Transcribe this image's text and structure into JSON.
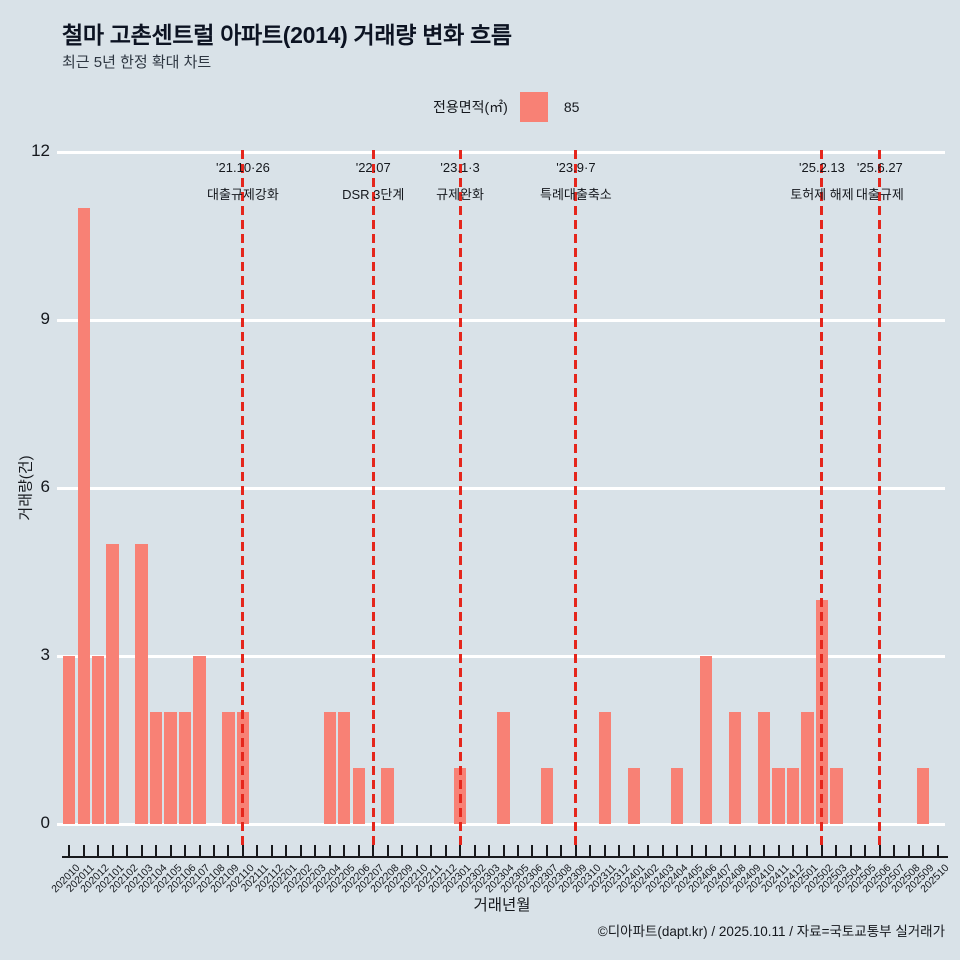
{
  "colors": {
    "background": "#d9e2e8",
    "bar": "#f88175",
    "event_line": "#e5261c",
    "gridline": "#ffffff",
    "text": "#15181d"
  },
  "legend": {
    "label": "전용면적(㎡)",
    "value": "85"
  },
  "footer": {
    "credit": "©디아파트(dapt.kr) / 2025.10.11 / 자료=국토교통부 실거래가"
  },
  "chart_data": {
    "type": "bar",
    "title": "철마 고촌센트럴 아파트(2014) 거래량 변화 흐름",
    "subtitle": "최근 5년 한정 확대 차트",
    "xlabel": "거래년월",
    "ylabel": "거래량(건)",
    "ylim": [
      0,
      12
    ],
    "yticks": [
      0,
      3,
      6,
      9,
      12
    ],
    "grid": "horizontal-white",
    "legend_position": "top-center",
    "series_name": "85",
    "categories": [
      "202010",
      "202011",
      "202012",
      "202101",
      "202102",
      "202103",
      "202104",
      "202105",
      "202106",
      "202107",
      "202108",
      "202109",
      "202110",
      "202111",
      "202112",
      "202201",
      "202202",
      "202203",
      "202204",
      "202205",
      "202206",
      "202207",
      "202208",
      "202209",
      "202210",
      "202211",
      "202212",
      "202301",
      "202302",
      "202303",
      "202304",
      "202305",
      "202306",
      "202307",
      "202308",
      "202309",
      "202310",
      "202311",
      "202312",
      "202401",
      "202402",
      "202403",
      "202404",
      "202405",
      "202406",
      "202407",
      "202408",
      "202409",
      "202410",
      "202411",
      "202412",
      "202501",
      "202502",
      "202503",
      "202504",
      "202505",
      "202506",
      "202507",
      "202508",
      "202509",
      "202510"
    ],
    "values": [
      3,
      11,
      3,
      5,
      0,
      5,
      2,
      2,
      2,
      3,
      0,
      2,
      2,
      0,
      0,
      0,
      0,
      0,
      2,
      2,
      1,
      0,
      1,
      0,
      0,
      0,
      0,
      1,
      0,
      0,
      2,
      0,
      0,
      1,
      0,
      0,
      0,
      2,
      0,
      1,
      0,
      0,
      1,
      0,
      3,
      0,
      2,
      0,
      2,
      1,
      1,
      2,
      4,
      1,
      0,
      0,
      0,
      0,
      0,
      1,
      0
    ],
    "annotations": [
      {
        "month": "202110",
        "date": "'21.10·26",
        "label": "대출규제강화"
      },
      {
        "month": "202207",
        "date": "'22.07",
        "label": "DSR 3단계"
      },
      {
        "month": "202301",
        "date": "'23.1·3",
        "label": "규제완화"
      },
      {
        "month": "202309",
        "date": "'23.9·7",
        "label": "특례대출축소"
      },
      {
        "month": "202502",
        "date": "'25.2.13",
        "label": "토허제 해제"
      },
      {
        "month": "202506",
        "date": "'25.6.27",
        "label": "대출규제"
      }
    ]
  }
}
